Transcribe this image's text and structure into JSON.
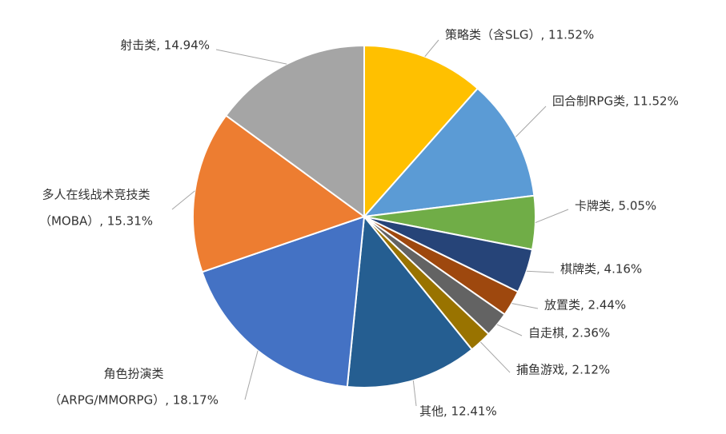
{
  "chart_data": {
    "type": "pie",
    "values": [
      11.52,
      11.52,
      5.05,
      4.16,
      2.44,
      2.36,
      2.12,
      12.41,
      18.17,
      15.31,
      14.94
    ],
    "value_labels": [
      [
        "策略类（含SLG）, 11.52%"
      ],
      [
        "回合制RPG类, 11.52%"
      ],
      [
        "卡牌类, 5.05%"
      ],
      [
        "棋牌类, 4.16%"
      ],
      [
        "放置类, 2.44%"
      ],
      [
        "自走棋, 2.36%"
      ],
      [
        "捕鱼游戏, 2.12%"
      ],
      [
        "其他, 12.41%"
      ],
      [
        "角色扮演类",
        "（ARPG/MMORPG）, 18.17%"
      ],
      [
        "多人在线战术竞技类",
        "（MOBA）, 15.31%"
      ],
      [
        "射击类, 14.94%"
      ]
    ],
    "colors": [
      "#ffc000",
      "#5b9bd5",
      "#70ad47",
      "#264478",
      "#9e480e",
      "#636363",
      "#997300",
      "#255e91",
      "#4472c4",
      "#ed7d31",
      "#a5a5a5"
    ]
  }
}
